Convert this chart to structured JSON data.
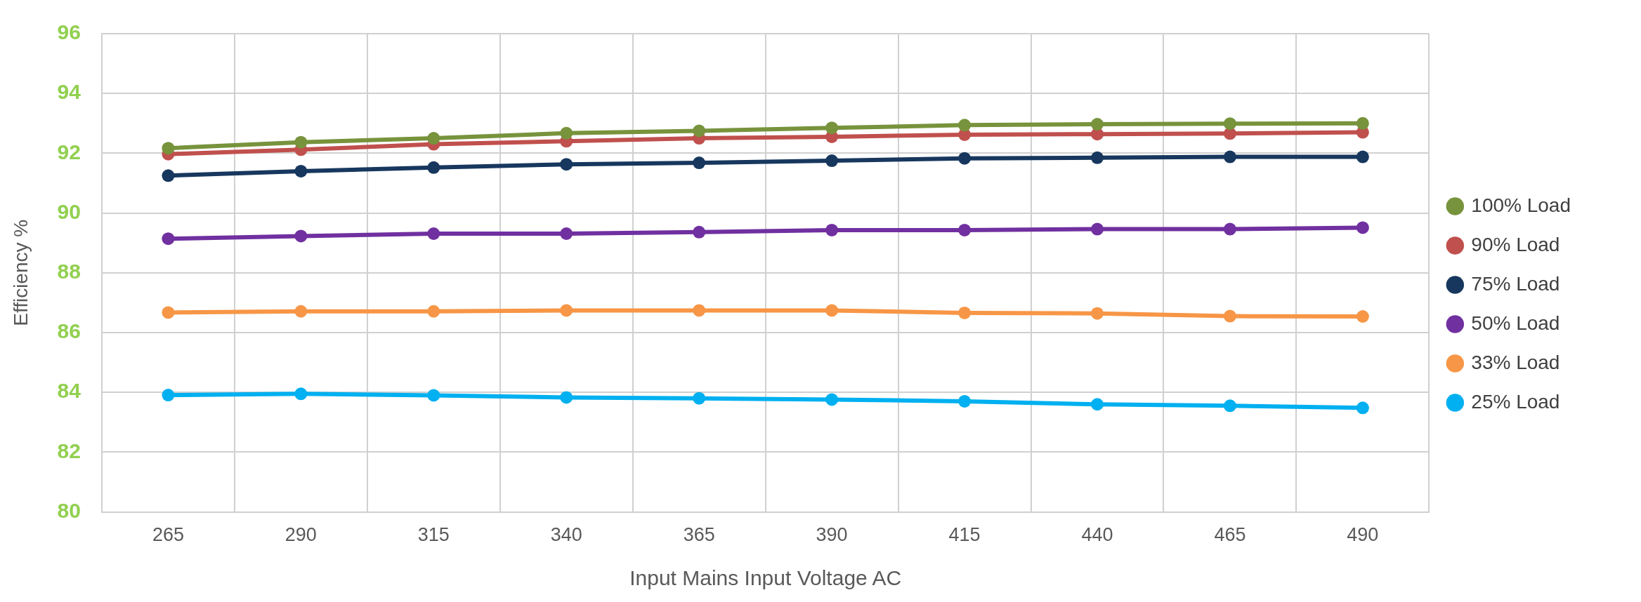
{
  "chart_data": {
    "type": "line",
    "xlabel": "Input Mains Input Voltage AC",
    "ylabel": "Efficiency %",
    "categories": [
      "265",
      "290",
      "315",
      "340",
      "365",
      "390",
      "415",
      "440",
      "465",
      "490"
    ],
    "ylim": [
      80,
      96
    ],
    "yticks": [
      80,
      82,
      84,
      86,
      88,
      90,
      92,
      94,
      96
    ],
    "grid": true,
    "legend": "right",
    "marker": "circle",
    "line_style": "solid",
    "series": [
      {
        "name": "100% Load",
        "color": "#77933c",
        "values": [
          92.17,
          92.37,
          92.5,
          92.67,
          92.75,
          92.85,
          92.94,
          92.97,
          92.99,
          93.0
        ]
      },
      {
        "name": "90% Load",
        "color": "#c0504d",
        "values": [
          91.97,
          92.12,
          92.3,
          92.4,
          92.5,
          92.55,
          92.62,
          92.64,
          92.66,
          92.7
        ]
      },
      {
        "name": "75% Load",
        "color": "#17375e",
        "values": [
          91.25,
          91.4,
          91.52,
          91.63,
          91.68,
          91.75,
          91.83,
          91.85,
          91.88,
          91.88
        ]
      },
      {
        "name": "50% Load",
        "color": "#7030a0",
        "values": [
          89.14,
          89.23,
          89.31,
          89.31,
          89.36,
          89.43,
          89.43,
          89.46,
          89.46,
          89.51
        ]
      },
      {
        "name": "33% Load",
        "color": "#f79646",
        "values": [
          86.67,
          86.71,
          86.71,
          86.74,
          86.74,
          86.74,
          86.66,
          86.64,
          86.55,
          86.54
        ]
      },
      {
        "name": "25% Load",
        "color": "#00b0f0",
        "values": [
          83.91,
          83.95,
          83.9,
          83.83,
          83.8,
          83.76,
          83.7,
          83.6,
          83.55,
          83.48
        ]
      }
    ]
  }
}
